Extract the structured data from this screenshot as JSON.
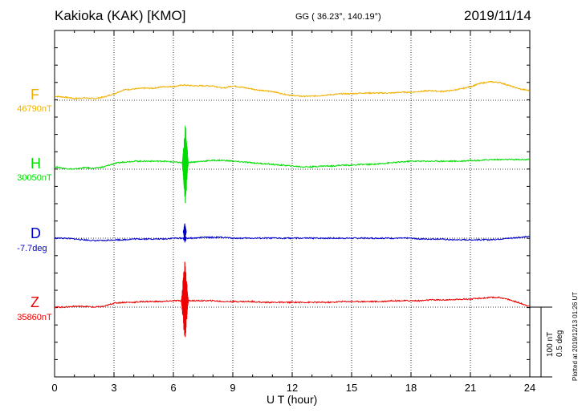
{
  "header": {
    "station": "Kakioka (KAK)  [KMO]",
    "coords": "GG ( 36.23°, 140.19°)",
    "date": "2019/11/14"
  },
  "footer": {
    "plotted": "Plotted at 2019/12/13 01:26 UT",
    "scale_nt": "100 nT",
    "scale_deg": "0.5 deg"
  },
  "chart_data": {
    "type": "line",
    "xlabel": "U T (hour)",
    "xlim": [
      0,
      24
    ],
    "xticks": [
      0,
      3,
      6,
      9,
      12,
      15,
      18,
      21,
      24
    ],
    "grid": true,
    "series": [
      {
        "name": "F",
        "baseline": "46790nT",
        "color": "#f0b000",
        "x": [
          0,
          0.5,
          1,
          1.5,
          2,
          2.5,
          3,
          3.5,
          4,
          4.5,
          5,
          5.5,
          6,
          6.5,
          7,
          7.5,
          8,
          8.5,
          9,
          9.5,
          10,
          10.5,
          11,
          11.5,
          12,
          12.5,
          13,
          13.5,
          14,
          14.5,
          15,
          15.5,
          16,
          16.5,
          17,
          17.5,
          18,
          18.5,
          19,
          19.5,
          20,
          20.5,
          21,
          21.5,
          22,
          22.5,
          23,
          23.5,
          24
        ],
        "values": [
          5,
          4,
          2,
          3,
          2,
          4,
          8,
          13,
          14,
          15,
          15,
          17,
          17,
          19,
          18,
          18,
          18,
          15,
          18,
          16,
          14,
          12,
          11,
          8,
          6,
          5,
          5,
          6,
          7,
          8,
          8,
          9,
          9,
          9,
          9,
          10,
          10,
          11,
          12,
          11,
          12,
          14,
          17,
          21,
          23,
          22,
          18,
          14,
          12
        ]
      },
      {
        "name": "H",
        "baseline": "30050nT",
        "color": "#00dd00",
        "x": [
          0,
          0.5,
          1,
          1.5,
          2,
          2.5,
          3,
          3.5,
          4,
          4.5,
          5,
          5.5,
          6,
          6.5,
          7,
          7.5,
          8,
          8.5,
          9,
          9.5,
          10,
          10.5,
          11,
          11.5,
          12,
          12.5,
          13,
          13.5,
          14,
          14.5,
          15,
          15.5,
          16,
          16.5,
          17,
          17.5,
          18,
          18.5,
          19,
          19.5,
          20,
          20.5,
          21,
          21.5,
          22,
          22.5,
          23,
          23.5,
          24
        ],
        "values": [
          3,
          1,
          0,
          2,
          1,
          3,
          7,
          9,
          10,
          10,
          10,
          10,
          9,
          8,
          9,
          10,
          11,
          11,
          10,
          9,
          8,
          7,
          6,
          5,
          4,
          3,
          3,
          4,
          4,
          5,
          5,
          6,
          6,
          7,
          8,
          9,
          10,
          10,
          10,
          10,
          10,
          10,
          11,
          11,
          12,
          12,
          12,
          12,
          12
        ],
        "burst": {
          "start": 6.45,
          "end": 6.75,
          "amplitude": 50
        }
      },
      {
        "name": "D",
        "baseline": "-7.7deg",
        "color": "#0000cc",
        "x": [
          0,
          0.5,
          1,
          1.5,
          2,
          2.5,
          3,
          3.5,
          4,
          4.5,
          5,
          5.5,
          6,
          6.5,
          7,
          7.5,
          8,
          8.5,
          9,
          9.5,
          10,
          10.5,
          11,
          11.5,
          12,
          12.5,
          13,
          13.5,
          14,
          14.5,
          15,
          15.5,
          16,
          16.5,
          17,
          17.5,
          18,
          18.5,
          19,
          19.5,
          20,
          20.5,
          21,
          21.5,
          22,
          22.5,
          23,
          23.5,
          24
        ],
        "values": [
          0,
          0,
          -1,
          -2,
          -3,
          -3,
          -2,
          -2,
          -1,
          -1,
          -1,
          -1,
          0,
          0,
          0,
          1,
          1,
          1,
          0,
          0,
          0,
          0,
          0,
          0,
          0,
          0,
          0,
          0,
          0,
          0,
          0,
          0,
          0,
          0,
          0,
          0,
          0,
          -1,
          -1,
          -1,
          -2,
          -2,
          -2,
          -2,
          -2,
          -1,
          0,
          1,
          2
        ],
        "burst": {
          "start": 6.5,
          "end": 6.65,
          "amplitude": 10
        }
      },
      {
        "name": "Z",
        "baseline": "35860nT",
        "color": "#ee0000",
        "x": [
          0,
          0.5,
          1,
          1.5,
          2,
          2.5,
          3,
          3.5,
          4,
          4.5,
          5,
          5.5,
          6,
          6.5,
          7,
          7.5,
          8,
          8.5,
          9,
          9.5,
          10,
          10.5,
          11,
          11.5,
          12,
          12.5,
          13,
          13.5,
          14,
          14.5,
          15,
          15.5,
          16,
          16.5,
          17,
          17.5,
          18,
          18.5,
          19,
          19.5,
          20,
          20.5,
          21,
          21.5,
          22,
          22.5,
          23,
          23.5,
          24
        ],
        "values": [
          0,
          0,
          1,
          1,
          0,
          1,
          5,
          6,
          6,
          7,
          7,
          7,
          8,
          8,
          8,
          8,
          8,
          7,
          7,
          7,
          7,
          6,
          6,
          6,
          6,
          6,
          6,
          6,
          6,
          7,
          7,
          7,
          7,
          7,
          8,
          8,
          8,
          8,
          9,
          9,
          9,
          10,
          10,
          11,
          12,
          12,
          9,
          5,
          1
        ],
        "burst": {
          "start": 6.4,
          "end": 6.75,
          "amplitude": 50
        }
      }
    ]
  }
}
